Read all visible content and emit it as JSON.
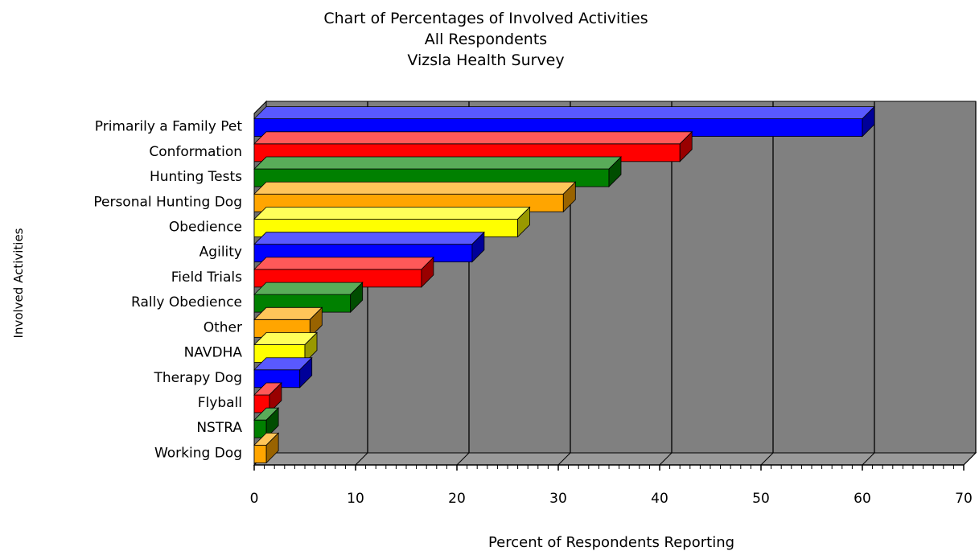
{
  "chart_data": {
    "type": "bar",
    "orientation": "horizontal",
    "three_d": true,
    "title_lines": [
      "Chart of Percentages of Involved Activities",
      "All Respondents",
      "Vizsla Health Survey"
    ],
    "xlabel": "Percent of Respondents Reporting",
    "ylabel": "Involved Activities",
    "xlim": [
      0,
      70
    ],
    "xticks": [
      0,
      10,
      20,
      30,
      40,
      50,
      60,
      70
    ],
    "grid": true,
    "plot_background": "#808080",
    "categories": [
      "Primarily a Family Pet",
      "Conformation",
      "Hunting Tests",
      "Personal Hunting Dog",
      "Obedience",
      "Agility",
      "Field Trials",
      "Rally Obedience",
      "Other",
      "NAVDHA",
      "Therapy Dog",
      "Flyball",
      "NSTRA",
      "Working Dog"
    ],
    "values": [
      60,
      42,
      35,
      30.5,
      26,
      21.5,
      16.5,
      9.5,
      5.5,
      5,
      4.5,
      1.5,
      1.2,
      1.2
    ],
    "bar_colors": [
      "#0000ff",
      "#ff0000",
      "#008000",
      "#ffa500",
      "#ffff00",
      "#0000ff",
      "#ff0000",
      "#008000",
      "#ffa500",
      "#ffff00",
      "#0000ff",
      "#ff0000",
      "#008000",
      "#ffa500"
    ]
  }
}
